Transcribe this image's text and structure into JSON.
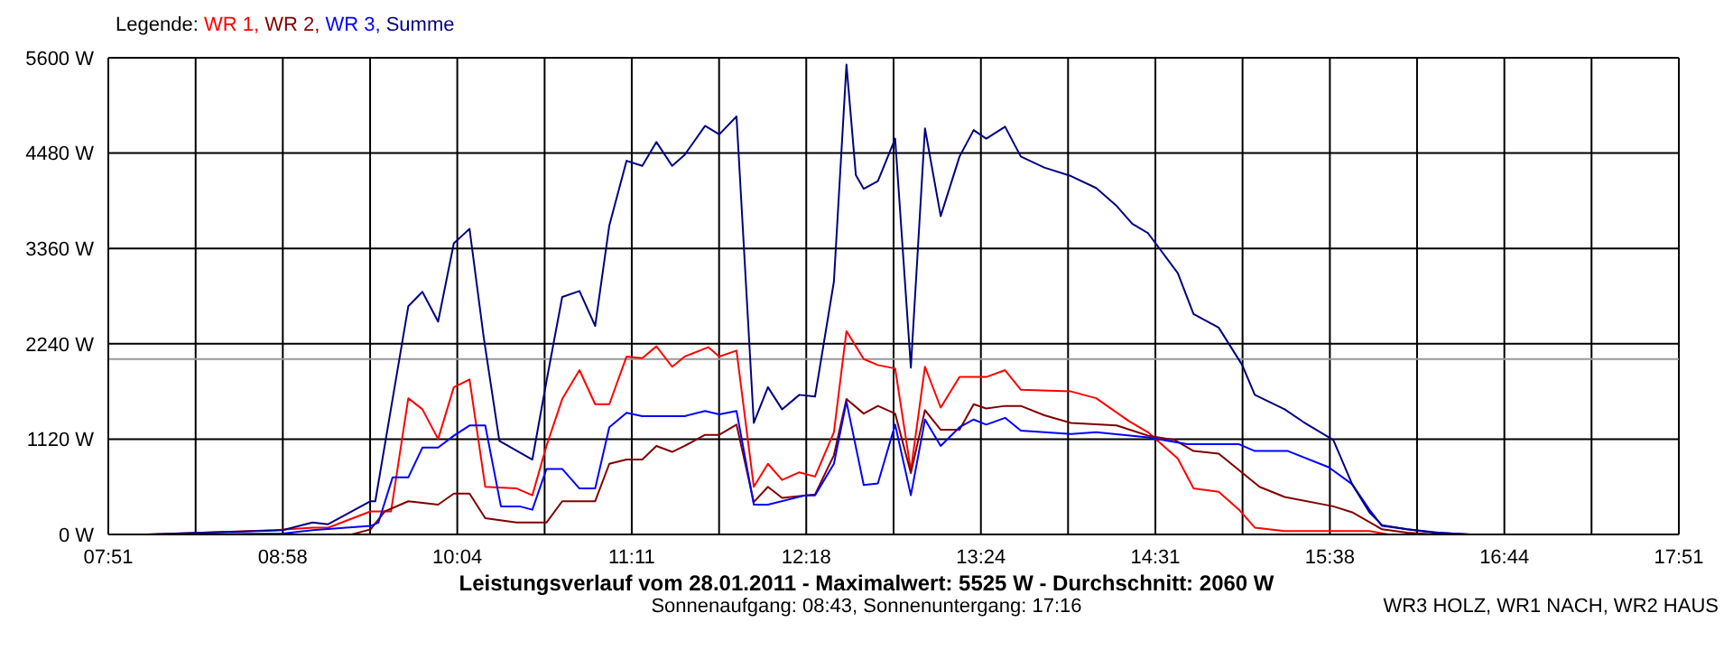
{
  "chart_data": {
    "type": "line",
    "title": "Leistungsverlauf vom 28.01.2011 - Maximalwert: 5525 W - Durchschnitt: 2060 W",
    "subtitle": "Sonnenaufgang: 08:43, Sonnenuntergang: 17:16",
    "annotations": [
      "WR3 HOLZ, WR1 NACH, WR2 HAUS"
    ],
    "legend_title": "Legende:",
    "legend": "top left",
    "grid": true,
    "marker": "none",
    "line_style": "solid",
    "xlim": [
      7.85,
      17.85
    ],
    "xticks": [
      {
        "value": 7.85,
        "label": "07:51"
      },
      {
        "value": 8.406,
        "label": null
      },
      {
        "value": 8.961,
        "label": "08:58"
      },
      {
        "value": 9.517,
        "label": null
      },
      {
        "value": 10.072,
        "label": "10:04"
      },
      {
        "value": 10.628,
        "label": null
      },
      {
        "value": 11.183,
        "label": "11:11"
      },
      {
        "value": 11.739,
        "label": null
      },
      {
        "value": 12.294,
        "label": "12:18"
      },
      {
        "value": 12.85,
        "label": null
      },
      {
        "value": 13.406,
        "label": "13:24"
      },
      {
        "value": 13.961,
        "label": null
      },
      {
        "value": 14.517,
        "label": "14:31"
      },
      {
        "value": 15.072,
        "label": null
      },
      {
        "value": 15.628,
        "label": "15:38"
      },
      {
        "value": 16.183,
        "label": null
      },
      {
        "value": 16.739,
        "label": "16:44"
      },
      {
        "value": 17.294,
        "label": null
      },
      {
        "value": 17.85,
        "label": "17:51"
      }
    ],
    "ylim": [
      0,
      5600
    ],
    "yticks": [
      {
        "value": 0,
        "label": "0 W"
      },
      {
        "value": 1120,
        "label": "1120 W"
      },
      {
        "value": 2240,
        "label": "2240 W"
      },
      {
        "value": 3360,
        "label": "3360 W"
      },
      {
        "value": 4480,
        "label": "4480 W"
      },
      {
        "value": 5600,
        "label": "5600 W"
      }
    ],
    "ref_lines": [
      {
        "axis": "y",
        "value": 2060,
        "color": "#999999"
      }
    ],
    "series": [
      {
        "name": "WR 1,",
        "color": "#ff0000",
        "x": [
          8.1,
          8.91,
          9.15,
          9.25,
          9.52,
          9.65,
          9.76,
          9.85,
          9.95,
          10.05,
          10.15,
          10.25,
          10.45,
          10.55,
          10.64,
          10.74,
          10.85,
          10.95,
          11.04,
          11.15,
          11.25,
          11.34,
          11.44,
          11.52,
          11.67,
          11.74,
          11.85,
          11.96,
          12.05,
          12.14,
          12.25,
          12.35,
          12.47,
          12.55,
          12.66,
          12.75,
          12.86,
          12.96,
          13.05,
          13.15,
          13.27,
          13.44,
          13.56,
          13.66,
          13.98,
          14.14,
          14.35,
          14.47,
          14.66,
          14.76,
          14.92,
          15.05,
          15.15,
          15.34,
          15.88,
          16.0
        ],
        "values": [
          0,
          50,
          80,
          80,
          270,
          270,
          1600,
          1470,
          1120,
          1730,
          1820,
          560,
          540,
          460,
          1040,
          1590,
          1930,
          1530,
          1530,
          2090,
          2070,
          2210,
          1970,
          2090,
          2200,
          2090,
          2160,
          560,
          830,
          640,
          730,
          680,
          1200,
          2390,
          2060,
          1990,
          1950,
          750,
          1970,
          1490,
          1850,
          1850,
          1930,
          1700,
          1680,
          1600,
          1330,
          1200,
          890,
          540,
          500,
          290,
          80,
          40,
          40,
          0
        ]
      },
      {
        "name": "WR 2,",
        "color": "#800000",
        "x": [
          8.1,
          9.4,
          9.52,
          9.61,
          9.76,
          9.85,
          9.95,
          10.05,
          10.15,
          10.25,
          10.45,
          10.64,
          10.74,
          10.95,
          11.04,
          11.15,
          11.25,
          11.34,
          11.44,
          11.52,
          11.65,
          11.74,
          11.85,
          11.96,
          12.05,
          12.14,
          12.35,
          12.47,
          12.55,
          12.66,
          12.75,
          12.86,
          12.96,
          13.05,
          13.15,
          13.27,
          13.36,
          13.44,
          13.56,
          13.66,
          13.81,
          13.98,
          14.27,
          14.47,
          14.64,
          14.76,
          14.92,
          15.18,
          15.34,
          15.65,
          15.77,
          15.96,
          16.12,
          16.29
        ],
        "values": [
          0,
          0,
          60,
          270,
          390,
          370,
          350,
          480,
          480,
          190,
          140,
          140,
          390,
          390,
          830,
          880,
          880,
          1040,
          970,
          1040,
          1170,
          1170,
          1290,
          380,
          560,
          430,
          470,
          930,
          1590,
          1420,
          1510,
          1420,
          720,
          1460,
          1230,
          1230,
          1530,
          1480,
          1510,
          1510,
          1400,
          1310,
          1280,
          1160,
          1110,
          980,
          950,
          560,
          440,
          330,
          260,
          60,
          20,
          0
        ]
      },
      {
        "name": "WR 3,",
        "color": "#0000ff",
        "x": [
          8.1,
          8.96,
          9.15,
          9.52,
          9.57,
          9.66,
          9.76,
          9.85,
          9.95,
          10.05,
          10.15,
          10.25,
          10.35,
          10.47,
          10.55,
          10.64,
          10.74,
          10.85,
          10.95,
          11.04,
          11.15,
          11.25,
          11.52,
          11.65,
          11.74,
          11.85,
          11.96,
          12.05,
          12.29,
          12.35,
          12.47,
          12.55,
          12.66,
          12.75,
          12.86,
          12.96,
          13.05,
          13.15,
          13.27,
          13.36,
          13.44,
          13.56,
          13.66,
          13.98,
          14.14,
          14.47,
          14.72,
          15.05,
          15.15,
          15.36,
          15.62,
          15.77,
          15.88,
          15.96,
          16.12,
          16.32,
          16.52
        ],
        "values": [
          0,
          10,
          50,
          100,
          140,
          670,
          670,
          1020,
          1020,
          1160,
          1280,
          1280,
          330,
          330,
          290,
          770,
          770,
          540,
          540,
          1260,
          1430,
          1390,
          1390,
          1450,
          1410,
          1450,
          350,
          350,
          460,
          460,
          830,
          1560,
          580,
          600,
          1290,
          460,
          1350,
          1040,
          1260,
          1350,
          1290,
          1370,
          1220,
          1180,
          1200,
          1140,
          1060,
          1060,
          980,
          980,
          790,
          590,
          290,
          100,
          60,
          20,
          0
        ]
      },
      {
        "name": "Summe",
        "color": "#000080",
        "x": [
          8.1,
          8.96,
          9.15,
          9.25,
          9.52,
          9.55,
          9.76,
          9.85,
          9.95,
          10.05,
          10.15,
          10.24,
          10.34,
          10.55,
          10.64,
          10.74,
          10.85,
          10.95,
          11.04,
          11.15,
          11.25,
          11.34,
          11.44,
          11.52,
          11.65,
          11.74,
          11.85,
          11.96,
          12.05,
          12.14,
          12.25,
          12.35,
          12.47,
          12.55,
          12.61,
          12.66,
          12.75,
          12.86,
          12.96,
          13.05,
          13.15,
          13.27,
          13.36,
          13.44,
          13.56,
          13.66,
          13.81,
          13.98,
          14.14,
          14.27,
          14.37,
          14.47,
          14.66,
          14.76,
          14.92,
          15.07,
          15.15,
          15.34,
          15.46,
          15.65,
          15.77,
          15.88,
          15.96,
          16.12,
          16.29,
          16.52
        ],
        "values": [
          0,
          50,
          140,
          120,
          390,
          390,
          2680,
          2850,
          2500,
          3420,
          3590,
          2320,
          1100,
          880,
          1800,
          2790,
          2860,
          2450,
          3630,
          4390,
          4330,
          4610,
          4330,
          4460,
          4800,
          4700,
          4910,
          1310,
          1730,
          1470,
          1640,
          1620,
          2970,
          5520,
          4220,
          4060,
          4150,
          4650,
          1960,
          4770,
          3740,
          4440,
          4750,
          4650,
          4790,
          4440,
          4310,
          4210,
          4070,
          3860,
          3650,
          3540,
          3070,
          2590,
          2430,
          1990,
          1640,
          1470,
          1320,
          1110,
          590,
          260,
          110,
          60,
          20,
          0
        ]
      }
    ]
  }
}
